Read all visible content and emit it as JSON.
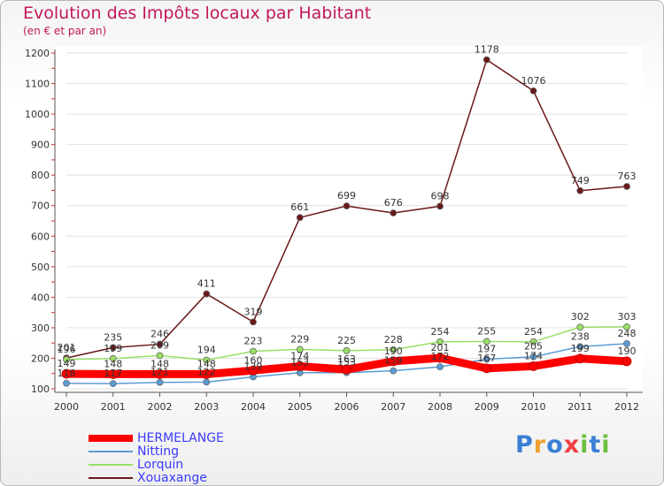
{
  "chart_data": {
    "type": "line",
    "title": "Evolution des Impôts locaux par Habitant",
    "subtitle": "(en € et par an)",
    "categories": [
      "2000",
      "2001",
      "2002",
      "2003",
      "2004",
      "2005",
      "2006",
      "2007",
      "2008",
      "2009",
      "2010",
      "2011",
      "2012"
    ],
    "ylim": [
      100,
      1200
    ],
    "yticks": [
      100,
      200,
      300,
      400,
      500,
      600,
      700,
      800,
      900,
      1000,
      1100,
      1200
    ],
    "series": [
      {
        "name": "HERMELANGE",
        "color": "#ff0000",
        "values": [
          149,
          148,
          148,
          148,
          160,
          174,
          163,
          190,
          201,
          167,
          174,
          199,
          190
        ],
        "labels": [
          "149",
          "148",
          "148",
          "148",
          "160",
          "174",
          "163",
          "190",
          "201",
          "167",
          "174",
          "199",
          "190"
        ]
      },
      {
        "name": "Nitting",
        "color": "#5b9bd5",
        "values": [
          118,
          117,
          121,
          122,
          139,
          153,
          153,
          159,
          172,
          197,
          205,
          238,
          248
        ],
        "labels": [
          "118",
          "117",
          "121",
          "122",
          "139",
          "153",
          "153",
          "159",
          "172",
          "197",
          "205",
          "238",
          "248"
        ]
      },
      {
        "name": "Lorquin",
        "color": "#99e066",
        "values": [
          196,
          199,
          209,
          194,
          223,
          229,
          225,
          228,
          254,
          255,
          254,
          302,
          303
        ],
        "labels": [
          "196",
          "199",
          "209",
          "194",
          "223",
          "229",
          "225",
          "228",
          "254",
          "255",
          "254",
          "302",
          "303"
        ]
      },
      {
        "name": "Xouaxange",
        "color": "#6b1818",
        "values": [
          201,
          235,
          246,
          411,
          319,
          661,
          699,
          676,
          698,
          1178,
          1076,
          749,
          763
        ],
        "labels": [
          "201",
          "235",
          "246",
          "411",
          "319",
          "661",
          "699",
          "676",
          "698",
          "1178",
          "1076",
          "749",
          "763"
        ]
      }
    ]
  },
  "legend": {
    "items": [
      "HERMELANGE",
      "Nitting",
      "Lorquin",
      "Xouaxange"
    ]
  },
  "logo": {
    "text": "Proxiti",
    "letters": [
      "P",
      "r",
      "o",
      "x",
      "i",
      "t",
      "i"
    ],
    "colors": [
      "#3a7fd5",
      "#f0a030",
      "#3a7fd5",
      "#f04040",
      "#6ac040",
      "#3a7fd5",
      "#6ac040"
    ]
  }
}
